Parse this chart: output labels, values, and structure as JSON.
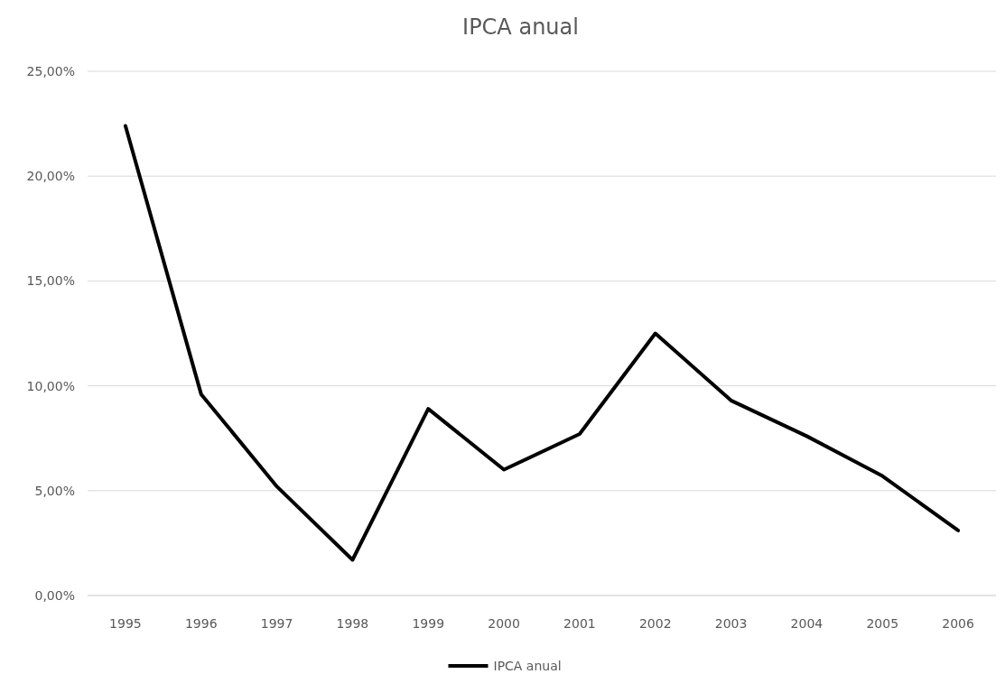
{
  "chart_data": {
    "type": "line",
    "title": "IPCA anual",
    "categories": [
      "1995",
      "1996",
      "1997",
      "1998",
      "1999",
      "2000",
      "2001",
      "2002",
      "2003",
      "2004",
      "2005",
      "2006"
    ],
    "series": [
      {
        "name": "IPCA anual",
        "color": "#000000",
        "values": [
          22.4,
          9.6,
          5.2,
          1.7,
          8.9,
          6.0,
          7.7,
          12.5,
          9.3,
          7.6,
          5.7,
          3.1
        ]
      }
    ],
    "ylim": [
      0,
      25
    ],
    "yticks": [
      {
        "value": 0,
        "label": "0,00%"
      },
      {
        "value": 5,
        "label": "5,00%"
      },
      {
        "value": 10,
        "label": "10,00%"
      },
      {
        "value": 15,
        "label": "15,00%"
      },
      {
        "value": 20,
        "label": "20,00%"
      },
      {
        "value": 25,
        "label": "25,00%"
      }
    ],
    "grid": "y",
    "legend": "bottom",
    "marker": "none",
    "line_style": "solid"
  }
}
